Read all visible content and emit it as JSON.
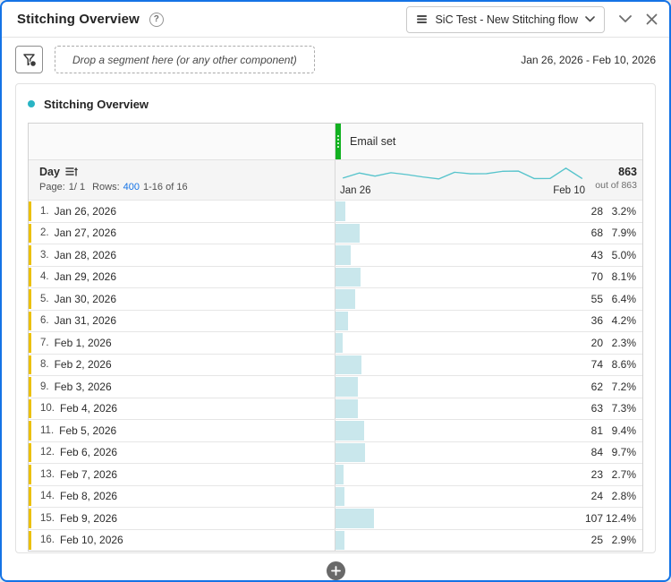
{
  "header": {
    "title": "Stitching Overview",
    "help_glyph": "?",
    "dataset_selector": {
      "label": "SiC Test - New Stitching flow"
    }
  },
  "toolbar": {
    "dropzone_text": "Drop a segment here (or any other component)",
    "date_range": "Jan 26, 2026 - Feb 10, 2026"
  },
  "panel": {
    "title": "Stitching Overview"
  },
  "table": {
    "column_header": "Email set",
    "dimension": "Day",
    "pagination": {
      "page_label": "Page:",
      "page_value": "1/ 1",
      "rows_label": "Rows:",
      "rows_value": "400",
      "range": "1-16 of 16"
    },
    "sparkline_start": "Jan 26",
    "sparkline_end": "Feb 10",
    "total": "863",
    "total_sub": "out of 863",
    "rows": [
      {
        "index": "1.",
        "date": "Jan 26, 2026",
        "value": "28",
        "pct": "3.2%"
      },
      {
        "index": "2.",
        "date": "Jan 27, 2026",
        "value": "68",
        "pct": "7.9%"
      },
      {
        "index": "3.",
        "date": "Jan 28, 2026",
        "value": "43",
        "pct": "5.0%"
      },
      {
        "index": "4.",
        "date": "Jan 29, 2026",
        "value": "70",
        "pct": "8.1%"
      },
      {
        "index": "5.",
        "date": "Jan 30, 2026",
        "value": "55",
        "pct": "6.4%"
      },
      {
        "index": "6.",
        "date": "Jan 31, 2026",
        "value": "36",
        "pct": "4.2%"
      },
      {
        "index": "7.",
        "date": "Feb 1, 2026",
        "value": "20",
        "pct": "2.3%"
      },
      {
        "index": "8.",
        "date": "Feb 2, 2026",
        "value": "74",
        "pct": "8.6%"
      },
      {
        "index": "9.",
        "date": "Feb 3, 2026",
        "value": "62",
        "pct": "7.2%"
      },
      {
        "index": "10.",
        "date": "Feb 4, 2026",
        "value": "63",
        "pct": "7.3%"
      },
      {
        "index": "11.",
        "date": "Feb 5, 2026",
        "value": "81",
        "pct": "9.4%"
      },
      {
        "index": "12.",
        "date": "Feb 6, 2026",
        "value": "84",
        "pct": "9.7%"
      },
      {
        "index": "13.",
        "date": "Feb 7, 2026",
        "value": "23",
        "pct": "2.7%"
      },
      {
        "index": "14.",
        "date": "Feb 8, 2026",
        "value": "24",
        "pct": "2.8%"
      },
      {
        "index": "15.",
        "date": "Feb 9, 2026",
        "value": "107",
        "pct": "12.4%"
      },
      {
        "index": "16.",
        "date": "Feb 10, 2026",
        "value": "25",
        "pct": "2.9%"
      }
    ]
  },
  "chart_data": {
    "type": "bar",
    "title": "Email set by Day",
    "categories": [
      "Jan 26, 2026",
      "Jan 27, 2026",
      "Jan 28, 2026",
      "Jan 29, 2026",
      "Jan 30, 2026",
      "Jan 31, 2026",
      "Feb 1, 2026",
      "Feb 2, 2026",
      "Feb 3, 2026",
      "Feb 4, 2026",
      "Feb 5, 2026",
      "Feb 6, 2026",
      "Feb 7, 2026",
      "Feb 8, 2026",
      "Feb 9, 2026",
      "Feb 10, 2026"
    ],
    "values": [
      28,
      68,
      43,
      70,
      55,
      36,
      20,
      74,
      62,
      63,
      81,
      84,
      23,
      24,
      107,
      25
    ],
    "percentages": [
      3.2,
      7.9,
      5.0,
      8.1,
      6.4,
      4.2,
      2.3,
      8.6,
      7.2,
      7.3,
      9.4,
      9.7,
      2.7,
      2.8,
      12.4,
      2.9
    ],
    "total": 863,
    "x_start_label": "Jan 26",
    "x_end_label": "Feb 10",
    "bar_color": "#C9E7EC",
    "sparkline_color": "#57C4CC",
    "accent_colors": {
      "dimension_marker": "#EBC000",
      "column_handle": "#12B121",
      "panel_bullet": "#29B4C4",
      "link": "#1473E6",
      "window_border": "#1473E6"
    }
  }
}
